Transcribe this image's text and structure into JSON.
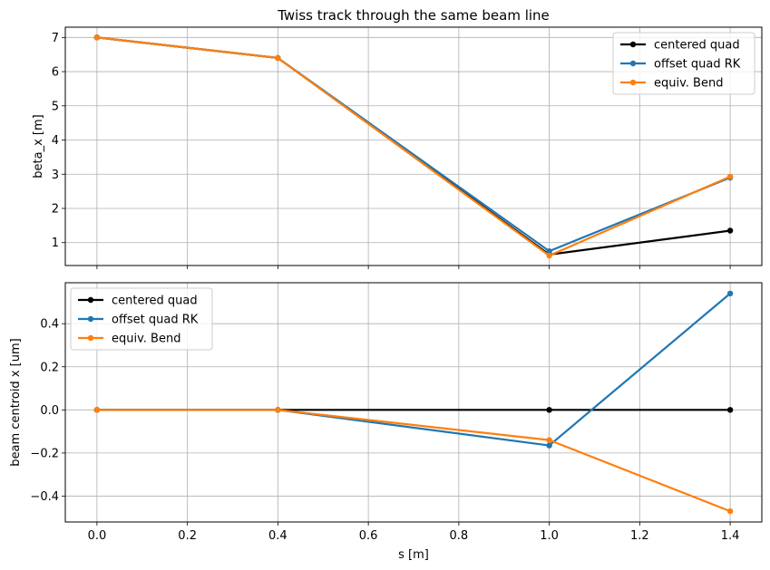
{
  "chart_data": [
    {
      "type": "line",
      "title": "Twiss track through the same beam line",
      "xlabel": "",
      "ylabel": "beta_x [m]",
      "xlim": [
        -0.07,
        1.47
      ],
      "ylim": [
        0.33,
        7.3
      ],
      "xticks": [
        0.0,
        0.2,
        0.4,
        0.6,
        0.8,
        1.0,
        1.2,
        1.4
      ],
      "yticks": [
        1,
        2,
        3,
        4,
        5,
        6,
        7
      ],
      "grid": true,
      "legend_position": "top-right",
      "series": [
        {
          "name": "centered quad",
          "color": "#000000",
          "x": [
            0.0,
            0.4,
            1.0,
            1.4
          ],
          "y": [
            7.0,
            6.4,
            0.65,
            1.35
          ]
        },
        {
          "name": "offset quad RK",
          "color": "#1f77b4",
          "x": [
            0.0,
            0.4,
            1.0,
            1.4
          ],
          "y": [
            7.0,
            6.4,
            0.75,
            2.9
          ]
        },
        {
          "name": "equiv. Bend",
          "color": "#ff7f0e",
          "x": [
            0.0,
            0.4,
            1.0,
            1.4
          ],
          "y": [
            7.0,
            6.4,
            0.62,
            2.93
          ]
        }
      ]
    },
    {
      "type": "line",
      "title": "",
      "xlabel": "s [m]",
      "ylabel": "beam centroid x [um]",
      "xlim": [
        -0.07,
        1.47
      ],
      "ylim": [
        -0.52,
        0.59
      ],
      "xticks": [
        0.0,
        0.2,
        0.4,
        0.6,
        0.8,
        1.0,
        1.2,
        1.4
      ],
      "yticks": [
        -0.4,
        -0.2,
        0.0,
        0.2,
        0.4
      ],
      "grid": true,
      "legend_position": "top-left",
      "series": [
        {
          "name": "centered quad",
          "color": "#000000",
          "x": [
            0.0,
            0.4,
            1.0,
            1.4
          ],
          "y": [
            0.0,
            0.0,
            0.0,
            0.0
          ]
        },
        {
          "name": "offset quad RK",
          "color": "#1f77b4",
          "x": [
            0.0,
            0.4,
            1.0,
            1.4
          ],
          "y": [
            0.0,
            0.0,
            -0.165,
            0.54
          ]
        },
        {
          "name": "equiv. Bend",
          "color": "#ff7f0e",
          "x": [
            0.0,
            0.4,
            1.0,
            1.4
          ],
          "y": [
            0.0,
            0.0,
            -0.14,
            -0.47
          ]
        }
      ]
    }
  ]
}
